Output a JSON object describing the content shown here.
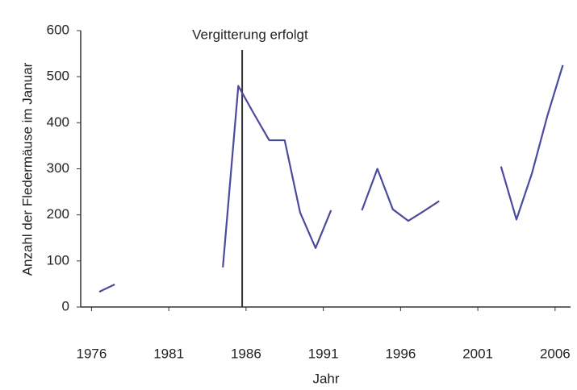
{
  "chart_data": {
    "type": "line",
    "xlabel": "Jahr",
    "ylabel": "Anzahl der Fledermäuse im Januar",
    "x": [
      1976.5,
      1977.5,
      1978.5,
      1979.5,
      1980.5,
      1981.5,
      1982.5,
      1983.5,
      1984.5,
      1985.5,
      1986.5,
      1987.5,
      1988.5,
      1989.5,
      1990.5,
      1991.5,
      1992.5,
      1993.5,
      1994.5,
      1995.5,
      1996.5,
      1997.5,
      1998.5,
      1999.5,
      2000.5,
      2001.5,
      2002.5,
      2003.5,
      2004.5,
      2005.5,
      2006.5
    ],
    "series": [
      {
        "color": "#4b4b9c",
        "values": [
          33,
          49,
          null,
          null,
          null,
          null,
          null,
          null,
          86,
          480,
          420,
          362,
          362,
          205,
          128,
          210,
          null,
          210,
          300,
          212,
          187,
          208,
          230,
          null,
          null,
          null,
          305,
          190,
          290,
          415,
          525
        ]
      }
    ],
    "xlim": [
      1975.3,
      2007
    ],
    "xticks": [
      1976,
      1981,
      1986,
      1991,
      1996,
      2001,
      2006
    ],
    "ylim": [
      0,
      600
    ],
    "yticks": [
      0,
      100,
      200,
      300,
      400,
      500,
      600
    ],
    "grid": false,
    "annotation": {
      "text": "Vergitterung erfolgt",
      "x": 1985.75
    }
  }
}
